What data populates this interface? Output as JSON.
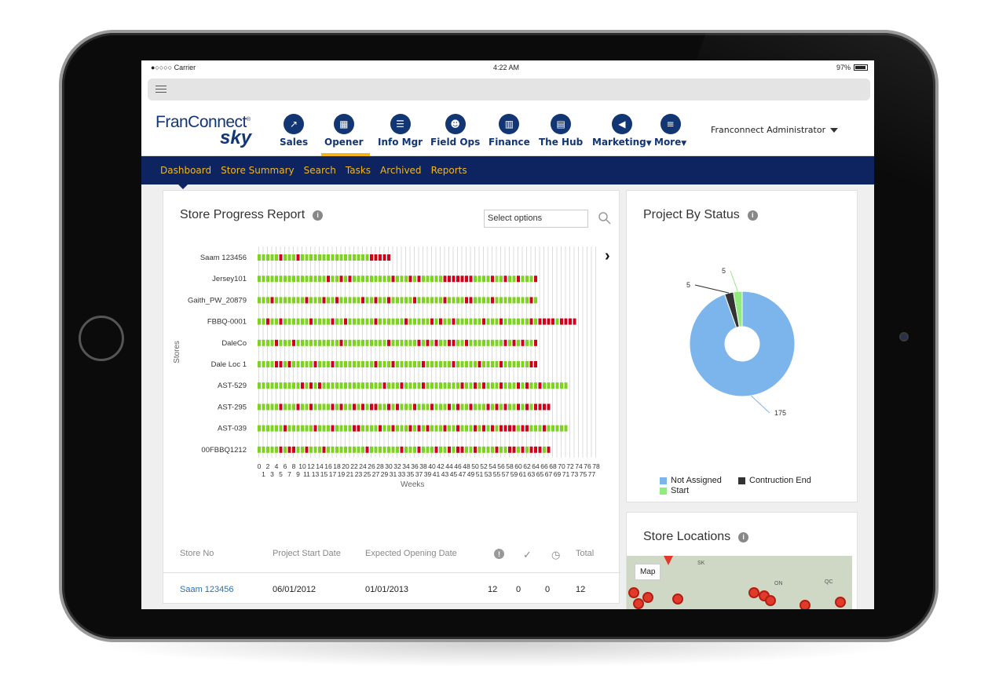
{
  "status_bar": {
    "carrier": "●○○○○ Carrier",
    "time": "4:22 AM",
    "battery": "97%"
  },
  "logo": {
    "top": "FranConnect",
    "mark": "®",
    "bottom": "sky"
  },
  "nav": {
    "items": [
      {
        "label": "Sales",
        "icon": "chart-trend-icon"
      },
      {
        "label": "Opener",
        "icon": "storefront-icon"
      },
      {
        "label": "Info Mgr",
        "icon": "document-list-icon"
      },
      {
        "label": "Field Ops",
        "icon": "people-icon"
      },
      {
        "label": "Finance",
        "icon": "bar-chart-icon"
      },
      {
        "label": "The Hub",
        "icon": "building-icon"
      },
      {
        "label": "Marketing",
        "icon": "megaphone-icon"
      },
      {
        "label": "More",
        "icon": "menu-icon"
      }
    ],
    "active": "Opener",
    "user": "Franconnect Administrator"
  },
  "sub_nav": {
    "items": [
      "Dashboard",
      "Store Summary",
      "Search",
      "Tasks",
      "Archived",
      "Reports"
    ],
    "active": "Dashboard"
  },
  "store_progress": {
    "title": "Store Progress Report",
    "select_placeholder": "Select options",
    "ylabel": "Stores",
    "xlabel": "Weeks",
    "colors": {
      "on_track": "#7ed321",
      "late": "#d0021b",
      "empty": "#e3e3e3"
    }
  },
  "chart_data": [
    {
      "type": "bar",
      "title": "Store Progress Report",
      "xlabel": "Weeks",
      "ylabel": "Stores",
      "x_ticks": [
        "0",
        "1",
        "2",
        "3",
        "4",
        "5",
        "6",
        "7",
        "8",
        "9",
        "10",
        "11",
        "12",
        "13",
        "14",
        "15",
        "16",
        "17",
        "18",
        "19",
        "20",
        "21",
        "22",
        "23",
        "24",
        "25",
        "26",
        "27",
        "28",
        "29",
        "30",
        "31",
        "32",
        "33",
        "34",
        "35",
        "36",
        "37",
        "38",
        "39",
        "40",
        "41",
        "42",
        "43",
        "44",
        "45",
        "46",
        "47",
        "48",
        "49",
        "50",
        "51",
        "52",
        "53",
        "54",
        "55",
        "56",
        "57",
        "58",
        "59",
        "60",
        "61",
        "62",
        "63",
        "64",
        "65",
        "66",
        "67",
        "68",
        "69",
        "70",
        "71",
        "72",
        "73",
        "74",
        "75",
        "76",
        "77",
        "78"
      ],
      "categories": [
        "Saam 123456",
        "Jersey101",
        "Gaith_PW_20879",
        "FBBQ-0001",
        "DaleCo",
        "Dale Loc 1",
        "AST-529",
        "AST-295",
        "AST-039",
        "00FBBQ1212"
      ],
      "values": [
        31,
        65,
        65,
        74,
        65,
        65,
        72,
        68,
        72,
        68
      ],
      "late_weeks": [
        [
          5,
          9,
          26,
          27,
          28,
          29,
          30
        ],
        [
          16,
          19,
          21,
          31,
          35,
          37,
          43,
          44,
          45,
          46,
          47,
          48,
          49,
          54,
          57,
          60,
          64
        ],
        [
          3,
          11,
          15,
          18,
          24,
          27,
          30,
          36,
          43,
          48,
          49,
          54,
          63
        ],
        [
          2,
          5,
          12,
          17,
          20,
          27,
          34,
          40,
          42,
          45,
          52,
          56,
          63,
          65,
          66,
          67,
          68,
          70,
          71,
          72,
          73
        ],
        [
          4,
          8,
          19,
          30,
          37,
          39,
          41,
          44,
          45,
          48,
          57,
          59,
          61,
          64
        ],
        [
          4,
          5,
          7,
          13,
          17,
          27,
          31,
          38,
          45,
          51,
          56,
          63,
          64
        ],
        [
          10,
          12,
          14,
          29,
          33,
          38,
          47,
          50,
          52,
          56,
          60,
          62,
          65
        ],
        [
          5,
          9,
          12,
          17,
          19,
          22,
          24,
          26,
          27,
          30,
          32,
          36,
          40,
          44,
          46,
          49,
          53,
          55,
          57,
          60,
          62,
          64,
          65,
          66,
          67
        ],
        [
          6,
          13,
          17,
          22,
          23,
          28,
          31,
          35,
          37,
          39,
          43,
          46,
          50,
          52,
          54,
          56,
          57,
          58,
          59,
          61,
          62,
          66
        ],
        [
          5,
          7,
          8,
          11,
          15,
          25,
          33,
          37,
          41,
          44,
          46,
          47,
          50,
          55,
          58,
          59,
          61,
          63,
          64,
          65,
          67
        ]
      ]
    },
    {
      "type": "pie",
      "title": "Project By Status",
      "categories": [
        "Not Assigned",
        "Contruction End",
        "Start"
      ],
      "values": [
        175,
        5,
        5
      ],
      "colors": [
        "#7cb5ec",
        "#333333",
        "#90ed7d"
      ]
    }
  ],
  "table": {
    "headers": {
      "store_no": "Store No",
      "start": "Project Start Date",
      "expected": "Expected Opening Date",
      "total": "Total"
    },
    "header_icons": [
      "alert-icon",
      "check-icon",
      "clock-icon"
    ],
    "rows": [
      {
        "store_no": "Saam 123456",
        "start": "06/01/2012",
        "expected": "01/01/2013",
        "alert": "12",
        "done": "0",
        "pending": "0",
        "total": "12"
      }
    ]
  },
  "project_status": {
    "title": "Project By Status",
    "labels": {
      "not_assigned": "175",
      "construction_end": "5",
      "start": "5"
    },
    "legend": [
      "Not Assigned",
      "Contruction End",
      "Start"
    ]
  },
  "store_locations": {
    "title": "Store Locations",
    "map_button": "Map",
    "map_labels": [
      "SK",
      "ON",
      "QC"
    ]
  }
}
